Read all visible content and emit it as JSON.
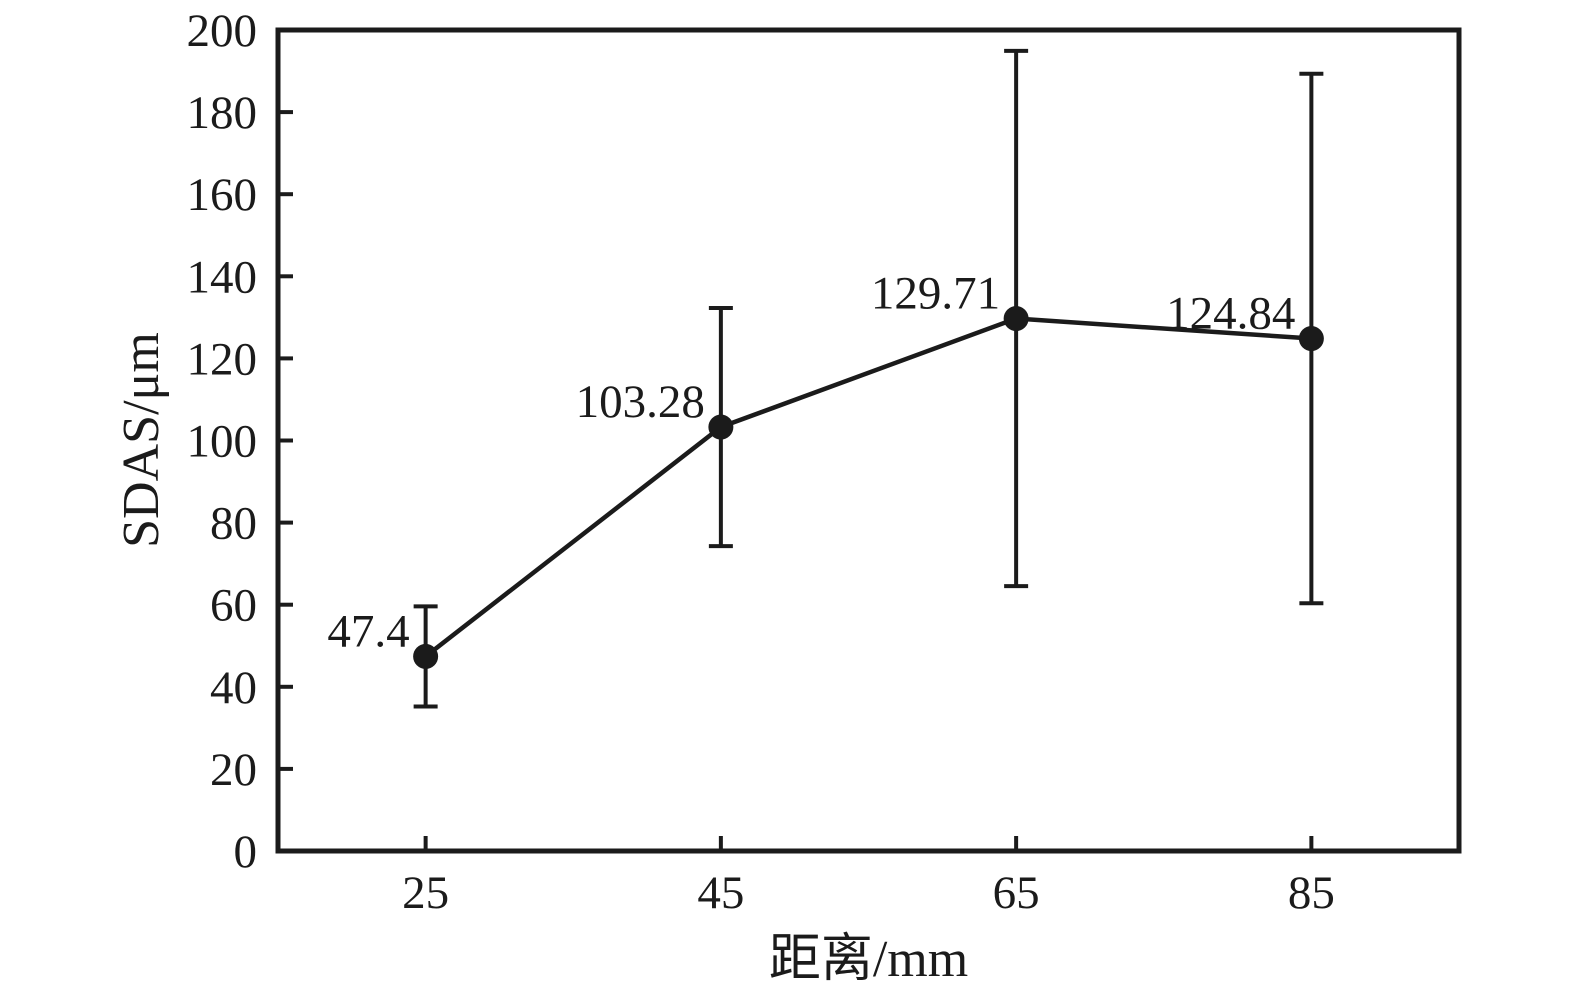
{
  "figure": {
    "background": "#ffffff",
    "ink_color": "#1b1b1b"
  },
  "chart_data": {
    "type": "line",
    "title": "",
    "xlabel": "距离/mm",
    "ylabel": "SDAS/μm",
    "x": [
      25,
      45,
      65,
      85
    ],
    "xticks": [
      25,
      45,
      65,
      85
    ],
    "yticks": [
      0,
      20,
      40,
      60,
      80,
      100,
      120,
      140,
      160,
      180,
      200
    ],
    "xlim": [
      15,
      95
    ],
    "ylim": [
      0,
      200
    ],
    "grid": false,
    "legend": "none",
    "marker": "circle",
    "series": [
      {
        "name": "SDAS",
        "values": [
          47.4,
          103.28,
          129.71,
          124.84
        ],
        "errors": [
          12.2,
          29.0,
          65.2,
          64.5
        ],
        "point_labels": [
          "47.4",
          "103.28",
          "129.71",
          "124.84"
        ],
        "color": "#1b1b1b"
      }
    ]
  }
}
